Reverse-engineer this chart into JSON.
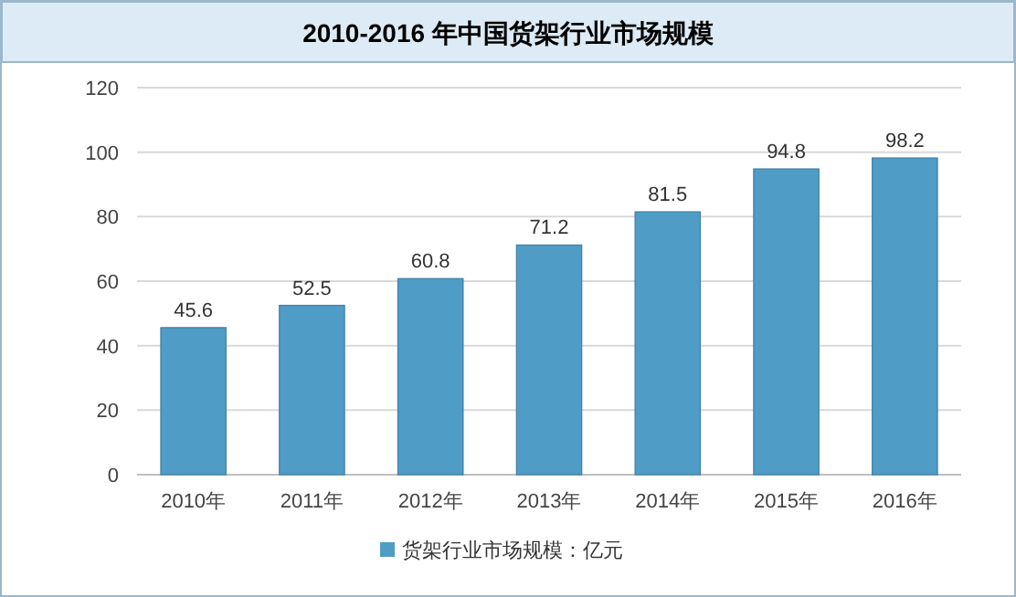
{
  "chart_data": {
    "type": "bar",
    "title": "2010-2016 年中国货架行业市场规模",
    "categories": [
      "2010年",
      "2011年",
      "2012年",
      "2013年",
      "2014年",
      "2015年",
      "2016年"
    ],
    "series": [
      {
        "name": "货架行业市场规模：亿元",
        "color": "#4f9cc6",
        "values": [
          45.6,
          52.5,
          60.8,
          71.2,
          81.5,
          94.8,
          98.2
        ]
      }
    ],
    "ylim": [
      0,
      120
    ],
    "yticks": [
      0,
      20,
      40,
      60,
      80,
      100,
      120
    ],
    "grid": "y",
    "legend": "bottom",
    "data_labels": true
  }
}
